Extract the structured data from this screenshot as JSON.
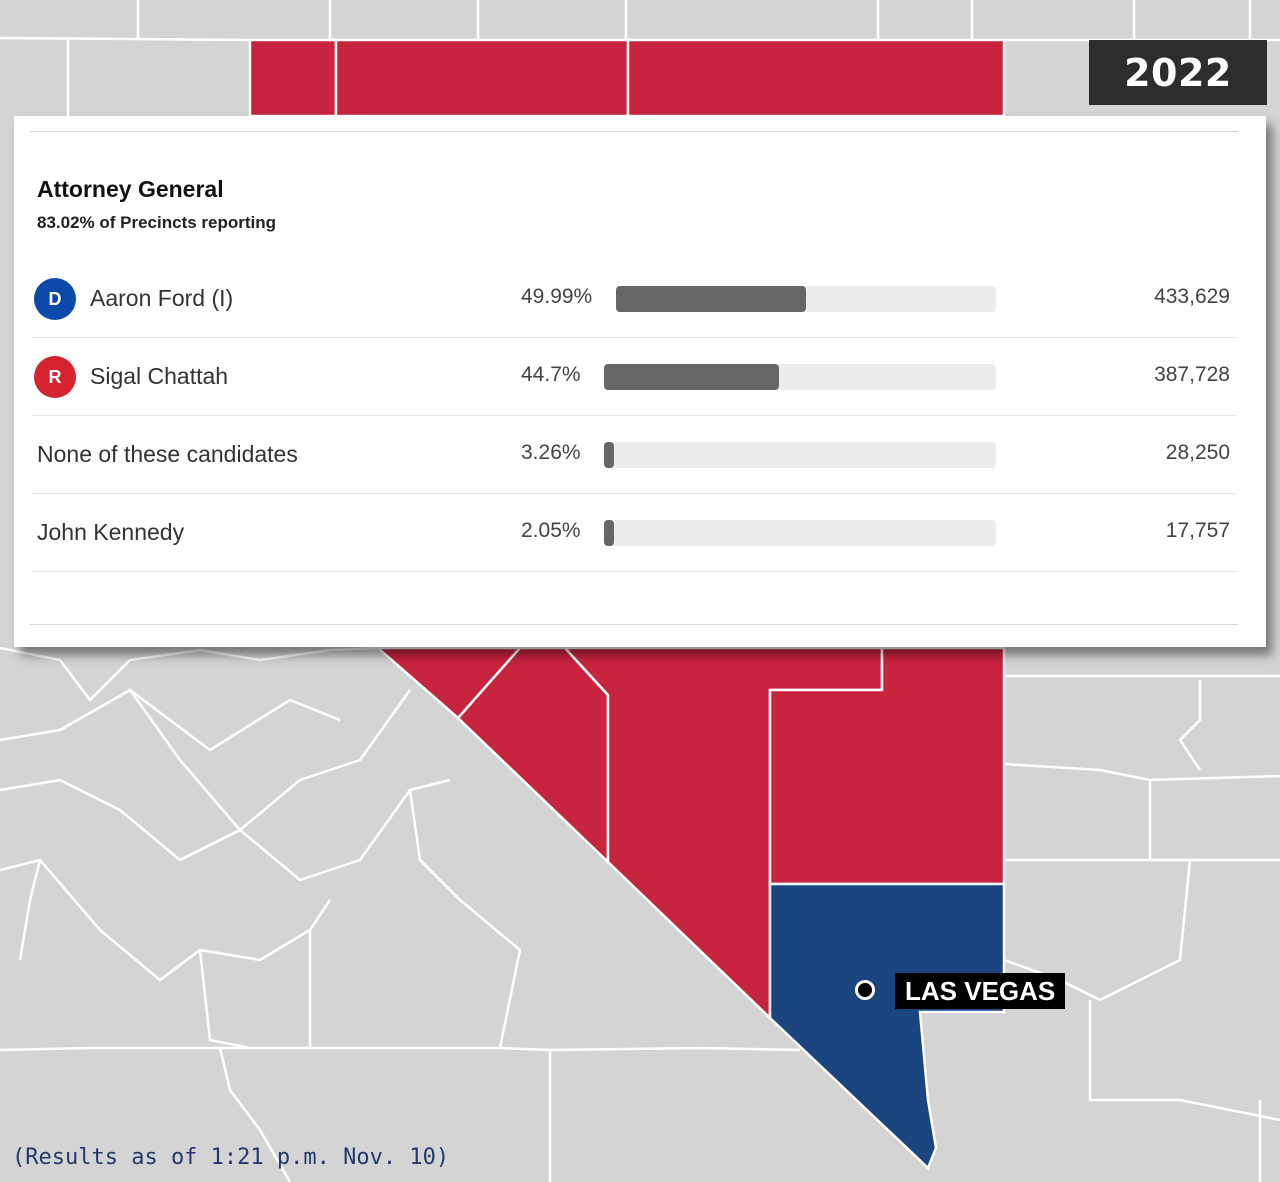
{
  "year": "2022",
  "race": {
    "title": "Attorney General",
    "reporting": "83.02% of Precincts reporting"
  },
  "candidates": [
    {
      "party": "D",
      "name": "Aaron Ford (I)",
      "pct": "49.99%",
      "share": 49.99,
      "votes": "433,629",
      "party_color": "#0b4aa8"
    },
    {
      "party": "R",
      "name": "Sigal Chattah",
      "pct": "44.7%",
      "share": 44.7,
      "votes": "387,728",
      "party_color": "#d5232f"
    },
    {
      "party": "",
      "name": "None of these candidates",
      "pct": "3.26%",
      "share": 3.26,
      "votes": "28,250",
      "party_color": ""
    },
    {
      "party": "",
      "name": "John Kennedy",
      "pct": "2.05%",
      "share": 2.05,
      "votes": "17,757",
      "party_color": ""
    }
  ],
  "map": {
    "city_label": "LAS VEGAS",
    "colors": {
      "background_county": "#d4d4d4",
      "county_border": "#ffffff",
      "republican": "#c8233f",
      "democrat": "#1a4580"
    }
  },
  "footnote": "(Results as of 1:21 p.m. Nov. 10)"
}
